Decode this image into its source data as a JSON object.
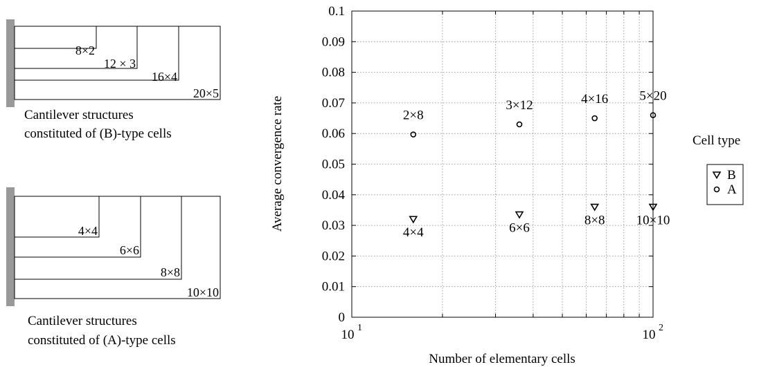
{
  "diagrams": [
    {
      "caption_line1": "Cantilever structures",
      "caption_line2": "constituted of (B)-type cells",
      "rects": [
        "8×2",
        "12 × 3",
        "16×4",
        "20×5"
      ]
    },
    {
      "caption_line1": "Cantilever structures",
      "caption_line2": "constituted of (A)-type cells",
      "rects": [
        "4×4",
        "6×6",
        "8×8",
        "10×10"
      ]
    }
  ],
  "chart_data": {
    "type": "scatter",
    "xlabel": "Number of elementary cells",
    "ylabel": "Average convergence rate",
    "x_scale": "log",
    "xlim": [
      10,
      100
    ],
    "ylim": [
      0,
      0.1
    ],
    "x_ticks": [
      {
        "value": 10,
        "label": "10",
        "exp": "1"
      },
      {
        "value": 100,
        "label": "10",
        "exp": "2"
      }
    ],
    "y_ticks": [
      "0",
      "0.01",
      "0.02",
      "0.03",
      "0.04",
      "0.05",
      "0.06",
      "0.07",
      "0.08",
      "0.09",
      "0.1"
    ],
    "grid": true,
    "legend": {
      "title": "Cell type",
      "placement": "right",
      "entries": [
        {
          "name": "B",
          "marker": "triangle-down"
        },
        {
          "name": "A",
          "marker": "circle"
        }
      ]
    },
    "series": [
      {
        "name": "B",
        "marker": "triangle-down",
        "points": [
          {
            "x": 16,
            "y": 0.032,
            "label": "4×4"
          },
          {
            "x": 36,
            "y": 0.0335,
            "label": "6×6"
          },
          {
            "x": 64,
            "y": 0.036,
            "label": "8×8"
          },
          {
            "x": 100,
            "y": 0.036,
            "label": "10×10"
          }
        ]
      },
      {
        "name": "A",
        "marker": "circle",
        "points": [
          {
            "x": 16,
            "y": 0.0597,
            "label": "2×8"
          },
          {
            "x": 36,
            "y": 0.063,
            "label": "3×12"
          },
          {
            "x": 64,
            "y": 0.065,
            "label": "4×16"
          },
          {
            "x": 100,
            "y": 0.066,
            "label": "5×20"
          }
        ]
      }
    ]
  }
}
